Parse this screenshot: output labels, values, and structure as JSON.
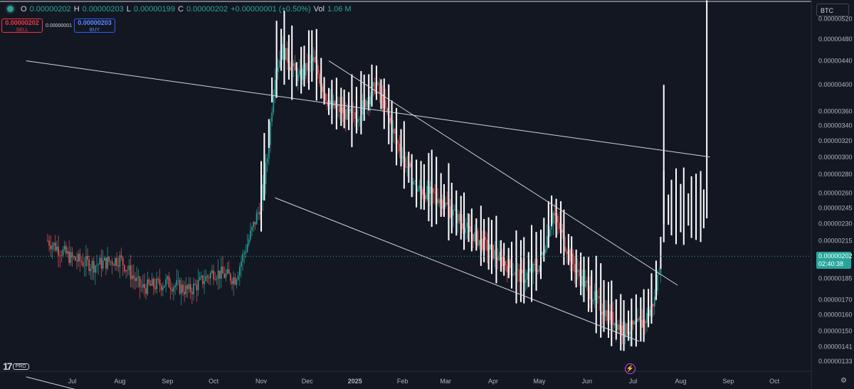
{
  "legend": {
    "o_label": "O",
    "o_value": "0.00000202",
    "h_label": "H",
    "h_value": "0.00000203",
    "l_label": "L",
    "l_value": "0.00000199",
    "c_label": "C",
    "c_value": "0.00000202",
    "change": "+0.00000001 (+0.50%)",
    "vol_label": "Vol",
    "vol_value": "1.06 M"
  },
  "trade": {
    "sell_price": "0.00000202",
    "sell_label": "SELL",
    "spread": "0.00000001",
    "buy_price": "0.00000203",
    "buy_label": "BUY"
  },
  "currency": "BTC",
  "current_price": {
    "value": "0.00000202",
    "countdown": "02:40:38"
  },
  "logo": {
    "tv": "17",
    "pro": "PRO"
  },
  "colors": {
    "up": "#26a69a",
    "down": "#ef5350",
    "background": "#131722",
    "text": "#b2b5be",
    "accent_buy": "#2962ff"
  },
  "icons": {
    "flash": "flash-icon",
    "settings": "gear-icon"
  },
  "chart_data": {
    "type": "candlestick",
    "yscale": "log",
    "ylim": [
      1.3e-06,
      5.45e-06
    ],
    "y_ticks": [
      "0.00000520",
      "0.00000480",
      "0.00000440",
      "0.00000400",
      "0.00000360",
      "0.00000340",
      "0.00000320",
      "0.00000300",
      "0.00000280",
      "0.00000260",
      "0.00000245",
      "0.00000230",
      "0.00000215",
      "0.00000185",
      "0.00000170",
      "0.00000160",
      "0.00000150",
      "0.00000141",
      "0.00000133"
    ],
    "x_ticks": [
      "Jul",
      "Aug",
      "Sep",
      "Oct",
      "Nov",
      "Dec",
      "2025",
      "Feb",
      "Mar",
      "Apr",
      "May",
      "Jun",
      "Jul",
      "Aug",
      "Sep",
      "Oct"
    ],
    "x_tick_dates": [
      "2024-07-01",
      "2024-08-01",
      "2024-09-01",
      "2024-10-01",
      "2024-11-01",
      "2024-12-01",
      "2025-01-01",
      "2025-02-01",
      "2025-03-01",
      "2025-04-01",
      "2025-05-01",
      "2025-06-01",
      "2025-07-01",
      "2025-08-01",
      "2025-09-01",
      "2025-10-01"
    ],
    "close_series": [
      [
        "2024-06-15",
        2.15e-06
      ],
      [
        "2024-07-01",
        2e-06
      ],
      [
        "2024-07-15",
        1.95e-06
      ],
      [
        "2024-08-01",
        2e-06
      ],
      [
        "2024-08-15",
        1.78e-06
      ],
      [
        "2024-09-01",
        1.82e-06
      ],
      [
        "2024-09-15",
        1.76e-06
      ],
      [
        "2024-10-01",
        1.9e-06
      ],
      [
        "2024-10-15",
        1.85e-06
      ],
      [
        "2024-10-25",
        2.2e-06
      ],
      [
        "2024-11-01",
        2.5e-06
      ],
      [
        "2024-11-05",
        3e-06
      ],
      [
        "2024-11-10",
        4.2e-06
      ],
      [
        "2024-11-15",
        4.6e-06
      ],
      [
        "2024-11-25",
        4.1e-06
      ],
      [
        "2024-12-05",
        4.4e-06
      ],
      [
        "2024-12-15",
        3.7e-06
      ],
      [
        "2025-01-01",
        3.5e-06
      ],
      [
        "2025-01-15",
        4e-06
      ],
      [
        "2025-01-28",
        3.2e-06
      ],
      [
        "2025-02-10",
        2.65e-06
      ],
      [
        "2025-02-25",
        2.55e-06
      ],
      [
        "2025-03-15",
        2.25e-06
      ],
      [
        "2025-04-01",
        2.05e-06
      ],
      [
        "2025-04-20",
        1.85e-06
      ],
      [
        "2025-05-01",
        1.95e-06
      ],
      [
        "2025-05-10",
        2.4e-06
      ],
      [
        "2025-05-25",
        1.9e-06
      ],
      [
        "2025-06-10",
        1.65e-06
      ],
      [
        "2025-06-25",
        1.5e-06
      ],
      [
        "2025-07-08",
        1.55e-06
      ],
      [
        "2025-07-15",
        1.7e-06
      ],
      [
        "2025-07-19",
        2.02e-06
      ]
    ],
    "trend_lines": [
      {
        "from": [
          "2024-06-01",
          4.4e-06
        ],
        "to": [
          "2025-08-20",
          3e-06
        ]
      },
      {
        "from": [
          "2024-12-15",
          4.4e-06
        ],
        "to": [
          "2025-07-30",
          1.8e-06
        ]
      },
      {
        "from": [
          "2024-11-10",
          2.55e-06
        ],
        "to": [
          "2025-07-05",
          1.44e-06
        ]
      },
      {
        "from": [
          "2024-06-01",
          1.25e-06
        ],
        "to": [
          "2024-08-10",
          1.12e-06
        ]
      }
    ],
    "last_price": 2.02e-06,
    "legend": "none",
    "grid": false
  }
}
